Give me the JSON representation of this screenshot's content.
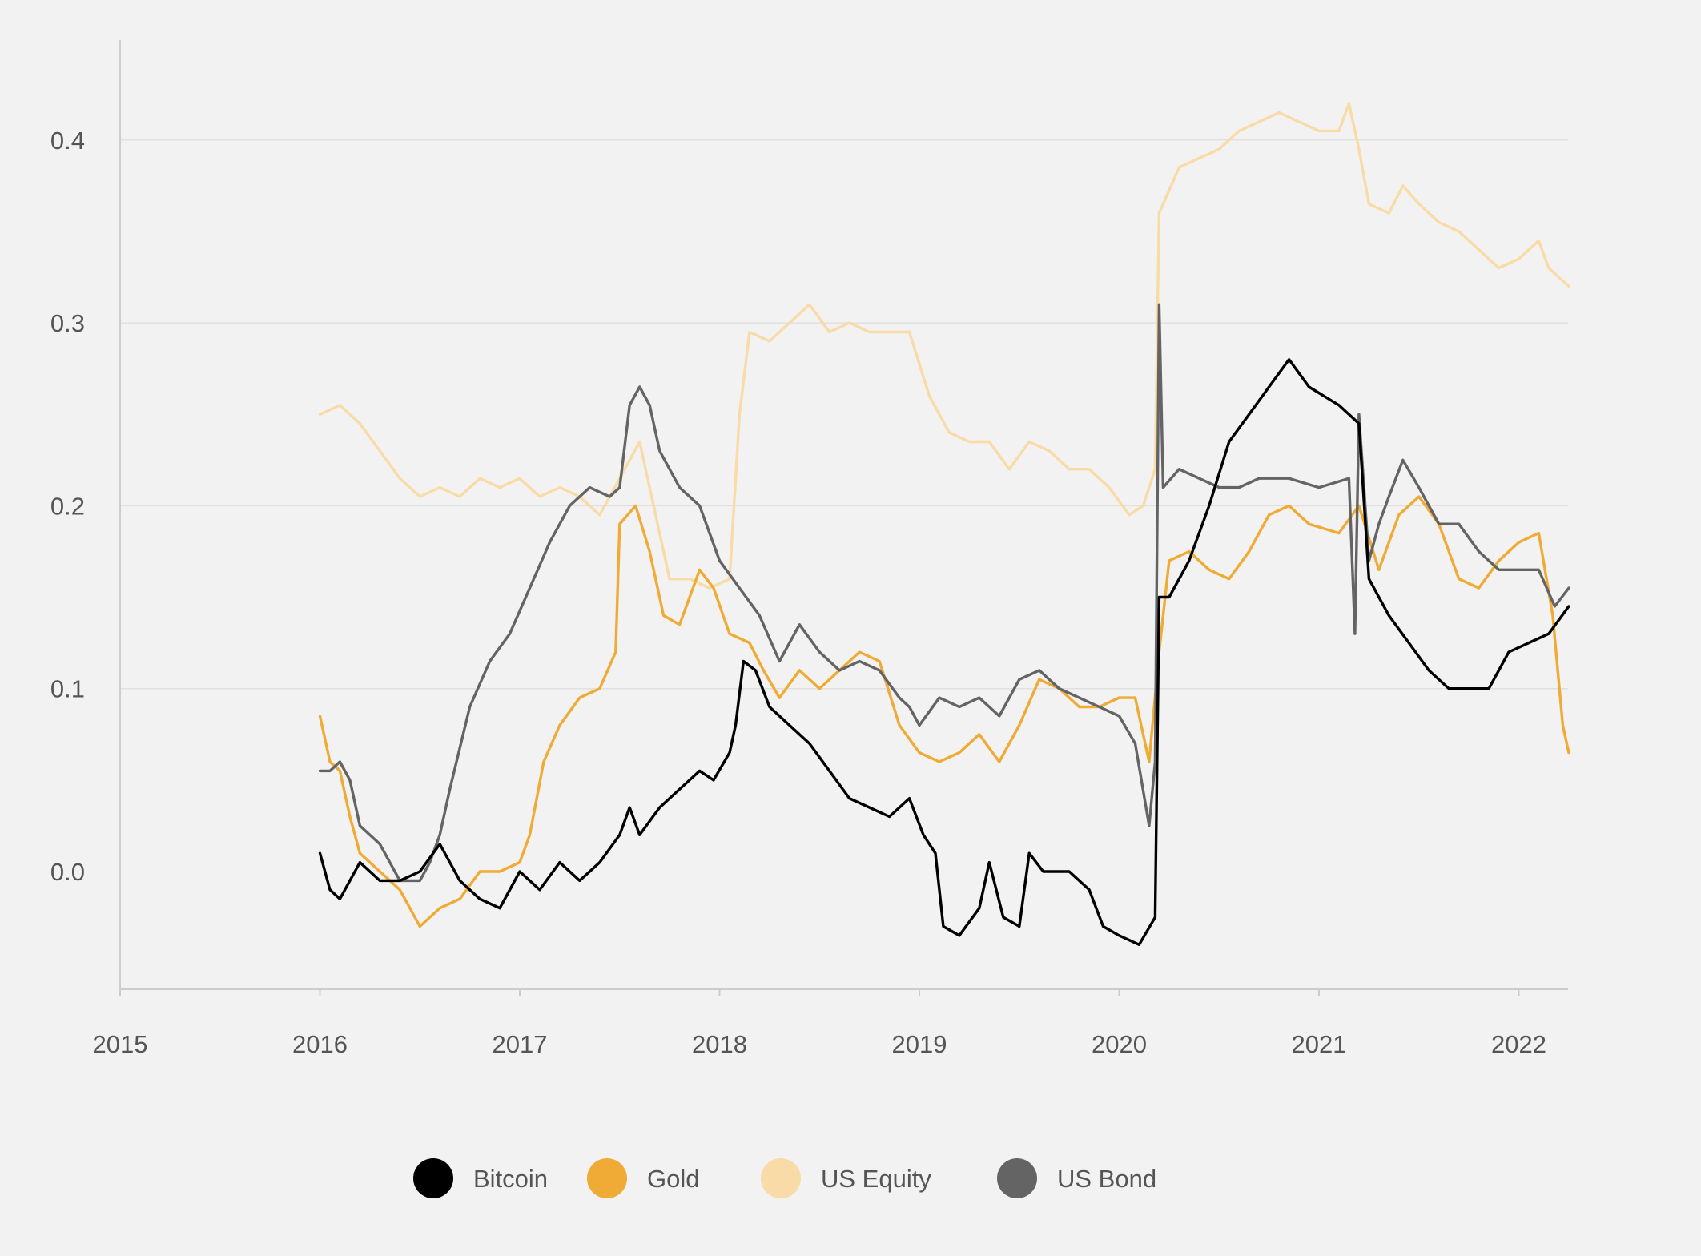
{
  "chart_data": {
    "type": "line",
    "title": "",
    "xlabel": "",
    "ylabel": "",
    "x_ticks": [
      "2015",
      "2016",
      "2017",
      "2018",
      "2019",
      "2020",
      "2021",
      "2022"
    ],
    "y_ticks": [
      "0.0",
      "0.1",
      "0.2",
      "0.3",
      "0.4"
    ],
    "xlim": [
      2015.0,
      2022.25
    ],
    "ylim": [
      -0.065,
      0.46
    ],
    "grid": "horizontal",
    "legend_position": "bottom",
    "series": [
      {
        "name": "Bitcoin",
        "color": "#000000",
        "points": [
          [
            2016.0,
            0.01
          ],
          [
            2016.05,
            -0.01
          ],
          [
            2016.1,
            -0.015
          ],
          [
            2016.2,
            0.005
          ],
          [
            2016.3,
            -0.005
          ],
          [
            2016.4,
            -0.005
          ],
          [
            2016.5,
            0.0
          ],
          [
            2016.6,
            0.015
          ],
          [
            2016.7,
            -0.005
          ],
          [
            2016.8,
            -0.015
          ],
          [
            2016.9,
            -0.02
          ],
          [
            2017.0,
            0.0
          ],
          [
            2017.1,
            -0.01
          ],
          [
            2017.2,
            0.005
          ],
          [
            2017.3,
            -0.005
          ],
          [
            2017.4,
            0.005
          ],
          [
            2017.5,
            0.02
          ],
          [
            2017.55,
            0.035
          ],
          [
            2017.6,
            0.02
          ],
          [
            2017.7,
            0.035
          ],
          [
            2017.8,
            0.045
          ],
          [
            2017.9,
            0.055
          ],
          [
            2017.97,
            0.05
          ],
          [
            2018.05,
            0.065
          ],
          [
            2018.08,
            0.08
          ],
          [
            2018.12,
            0.115
          ],
          [
            2018.18,
            0.11
          ],
          [
            2018.25,
            0.09
          ],
          [
            2018.35,
            0.08
          ],
          [
            2018.45,
            0.07
          ],
          [
            2018.55,
            0.055
          ],
          [
            2018.65,
            0.04
          ],
          [
            2018.75,
            0.035
          ],
          [
            2018.85,
            0.03
          ],
          [
            2018.95,
            0.04
          ],
          [
            2019.02,
            0.02
          ],
          [
            2019.08,
            0.01
          ],
          [
            2019.12,
            -0.03
          ],
          [
            2019.2,
            -0.035
          ],
          [
            2019.3,
            -0.02
          ],
          [
            2019.35,
            0.005
          ],
          [
            2019.42,
            -0.025
          ],
          [
            2019.5,
            -0.03
          ],
          [
            2019.55,
            0.01
          ],
          [
            2019.62,
            0.0
          ],
          [
            2019.75,
            0.0
          ],
          [
            2019.85,
            -0.01
          ],
          [
            2019.92,
            -0.03
          ],
          [
            2020.0,
            -0.035
          ],
          [
            2020.1,
            -0.04
          ],
          [
            2020.18,
            -0.025
          ],
          [
            2020.2,
            0.15
          ],
          [
            2020.25,
            0.15
          ],
          [
            2020.35,
            0.17
          ],
          [
            2020.45,
            0.2
          ],
          [
            2020.55,
            0.235
          ],
          [
            2020.65,
            0.25
          ],
          [
            2020.75,
            0.265
          ],
          [
            2020.85,
            0.28
          ],
          [
            2020.95,
            0.265
          ],
          [
            2021.1,
            0.255
          ],
          [
            2021.2,
            0.245
          ],
          [
            2021.25,
            0.16
          ],
          [
            2021.35,
            0.14
          ],
          [
            2021.45,
            0.125
          ],
          [
            2021.55,
            0.11
          ],
          [
            2021.65,
            0.1
          ],
          [
            2021.75,
            0.1
          ],
          [
            2021.85,
            0.1
          ],
          [
            2021.95,
            0.12
          ],
          [
            2022.05,
            0.125
          ],
          [
            2022.15,
            0.13
          ],
          [
            2022.25,
            0.145
          ]
        ]
      },
      {
        "name": "Gold",
        "color": "#efab35",
        "points": [
          [
            2016.0,
            0.085
          ],
          [
            2016.05,
            0.06
          ],
          [
            2016.1,
            0.055
          ],
          [
            2016.15,
            0.03
          ],
          [
            2016.2,
            0.01
          ],
          [
            2016.3,
            0.0
          ],
          [
            2016.4,
            -0.01
          ],
          [
            2016.5,
            -0.03
          ],
          [
            2016.6,
            -0.02
          ],
          [
            2016.7,
            -0.015
          ],
          [
            2016.8,
            0.0
          ],
          [
            2016.9,
            0.0
          ],
          [
            2017.0,
            0.005
          ],
          [
            2017.05,
            0.02
          ],
          [
            2017.12,
            0.06
          ],
          [
            2017.2,
            0.08
          ],
          [
            2017.3,
            0.095
          ],
          [
            2017.4,
            0.1
          ],
          [
            2017.48,
            0.12
          ],
          [
            2017.5,
            0.19
          ],
          [
            2017.58,
            0.2
          ],
          [
            2017.65,
            0.175
          ],
          [
            2017.72,
            0.14
          ],
          [
            2017.8,
            0.135
          ],
          [
            2017.9,
            0.165
          ],
          [
            2017.97,
            0.155
          ],
          [
            2018.05,
            0.13
          ],
          [
            2018.15,
            0.125
          ],
          [
            2018.22,
            0.11
          ],
          [
            2018.3,
            0.095
          ],
          [
            2018.4,
            0.11
          ],
          [
            2018.5,
            0.1
          ],
          [
            2018.6,
            0.11
          ],
          [
            2018.7,
            0.12
          ],
          [
            2018.8,
            0.115
          ],
          [
            2018.9,
            0.08
          ],
          [
            2019.0,
            0.065
          ],
          [
            2019.1,
            0.06
          ],
          [
            2019.2,
            0.065
          ],
          [
            2019.3,
            0.075
          ],
          [
            2019.4,
            0.06
          ],
          [
            2019.5,
            0.08
          ],
          [
            2019.6,
            0.105
          ],
          [
            2019.7,
            0.1
          ],
          [
            2019.8,
            0.09
          ],
          [
            2019.9,
            0.09
          ],
          [
            2020.0,
            0.095
          ],
          [
            2020.08,
            0.095
          ],
          [
            2020.15,
            0.06
          ],
          [
            2020.2,
            0.12
          ],
          [
            2020.25,
            0.17
          ],
          [
            2020.35,
            0.175
          ],
          [
            2020.45,
            0.165
          ],
          [
            2020.55,
            0.16
          ],
          [
            2020.65,
            0.175
          ],
          [
            2020.75,
            0.195
          ],
          [
            2020.85,
            0.2
          ],
          [
            2020.95,
            0.19
          ],
          [
            2021.1,
            0.185
          ],
          [
            2021.2,
            0.2
          ],
          [
            2021.3,
            0.165
          ],
          [
            2021.4,
            0.195
          ],
          [
            2021.5,
            0.205
          ],
          [
            2021.6,
            0.19
          ],
          [
            2021.7,
            0.16
          ],
          [
            2021.8,
            0.155
          ],
          [
            2021.9,
            0.17
          ],
          [
            2022.0,
            0.18
          ],
          [
            2022.1,
            0.185
          ],
          [
            2022.17,
            0.14
          ],
          [
            2022.22,
            0.08
          ],
          [
            2022.25,
            0.065
          ]
        ]
      },
      {
        "name": "US Equity",
        "color": "#f8dba6",
        "points": [
          [
            2016.0,
            0.25
          ],
          [
            2016.1,
            0.255
          ],
          [
            2016.2,
            0.245
          ],
          [
            2016.3,
            0.23
          ],
          [
            2016.4,
            0.215
          ],
          [
            2016.5,
            0.205
          ],
          [
            2016.6,
            0.21
          ],
          [
            2016.7,
            0.205
          ],
          [
            2016.8,
            0.215
          ],
          [
            2016.9,
            0.21
          ],
          [
            2017.0,
            0.215
          ],
          [
            2017.1,
            0.205
          ],
          [
            2017.2,
            0.21
          ],
          [
            2017.3,
            0.205
          ],
          [
            2017.4,
            0.195
          ],
          [
            2017.5,
            0.215
          ],
          [
            2017.6,
            0.235
          ],
          [
            2017.65,
            0.21
          ],
          [
            2017.75,
            0.16
          ],
          [
            2017.85,
            0.16
          ],
          [
            2017.95,
            0.155
          ],
          [
            2018.05,
            0.16
          ],
          [
            2018.1,
            0.25
          ],
          [
            2018.15,
            0.295
          ],
          [
            2018.25,
            0.29
          ],
          [
            2018.35,
            0.3
          ],
          [
            2018.45,
            0.31
          ],
          [
            2018.55,
            0.295
          ],
          [
            2018.65,
            0.3
          ],
          [
            2018.75,
            0.295
          ],
          [
            2018.85,
            0.295
          ],
          [
            2018.95,
            0.295
          ],
          [
            2019.05,
            0.26
          ],
          [
            2019.15,
            0.24
          ],
          [
            2019.25,
            0.235
          ],
          [
            2019.35,
            0.235
          ],
          [
            2019.45,
            0.22
          ],
          [
            2019.55,
            0.235
          ],
          [
            2019.65,
            0.23
          ],
          [
            2019.75,
            0.22
          ],
          [
            2019.85,
            0.22
          ],
          [
            2019.95,
            0.21
          ],
          [
            2020.05,
            0.195
          ],
          [
            2020.12,
            0.2
          ],
          [
            2020.18,
            0.22
          ],
          [
            2020.2,
            0.36
          ],
          [
            2020.3,
            0.385
          ],
          [
            2020.4,
            0.39
          ],
          [
            2020.5,
            0.395
          ],
          [
            2020.6,
            0.405
          ],
          [
            2020.7,
            0.41
          ],
          [
            2020.8,
            0.415
          ],
          [
            2020.9,
            0.41
          ],
          [
            2021.0,
            0.405
          ],
          [
            2021.1,
            0.405
          ],
          [
            2021.15,
            0.42
          ],
          [
            2021.2,
            0.395
          ],
          [
            2021.25,
            0.365
          ],
          [
            2021.35,
            0.36
          ],
          [
            2021.42,
            0.375
          ],
          [
            2021.5,
            0.365
          ],
          [
            2021.6,
            0.355
          ],
          [
            2021.7,
            0.35
          ],
          [
            2021.8,
            0.34
          ],
          [
            2021.9,
            0.33
          ],
          [
            2022.0,
            0.335
          ],
          [
            2022.1,
            0.345
          ],
          [
            2022.15,
            0.33
          ],
          [
            2022.2,
            0.325
          ],
          [
            2022.25,
            0.32
          ]
        ]
      },
      {
        "name": "US Bond",
        "color": "#646464",
        "points": [
          [
            2016.0,
            0.055
          ],
          [
            2016.05,
            0.055
          ],
          [
            2016.1,
            0.06
          ],
          [
            2016.15,
            0.05
          ],
          [
            2016.2,
            0.025
          ],
          [
            2016.3,
            0.015
          ],
          [
            2016.4,
            -0.005
          ],
          [
            2016.5,
            -0.005
          ],
          [
            2016.55,
            0.005
          ],
          [
            2016.6,
            0.02
          ],
          [
            2016.65,
            0.045
          ],
          [
            2016.75,
            0.09
          ],
          [
            2016.85,
            0.115
          ],
          [
            2016.95,
            0.13
          ],
          [
            2017.05,
            0.155
          ],
          [
            2017.15,
            0.18
          ],
          [
            2017.25,
            0.2
          ],
          [
            2017.35,
            0.21
          ],
          [
            2017.45,
            0.205
          ],
          [
            2017.5,
            0.21
          ],
          [
            2017.55,
            0.255
          ],
          [
            2017.6,
            0.265
          ],
          [
            2017.65,
            0.255
          ],
          [
            2017.7,
            0.23
          ],
          [
            2017.8,
            0.21
          ],
          [
            2017.9,
            0.2
          ],
          [
            2018.0,
            0.17
          ],
          [
            2018.1,
            0.155
          ],
          [
            2018.2,
            0.14
          ],
          [
            2018.3,
            0.115
          ],
          [
            2018.4,
            0.135
          ],
          [
            2018.5,
            0.12
          ],
          [
            2018.6,
            0.11
          ],
          [
            2018.7,
            0.115
          ],
          [
            2018.8,
            0.11
          ],
          [
            2018.9,
            0.095
          ],
          [
            2018.95,
            0.09
          ],
          [
            2019.0,
            0.08
          ],
          [
            2019.1,
            0.095
          ],
          [
            2019.2,
            0.09
          ],
          [
            2019.3,
            0.095
          ],
          [
            2019.4,
            0.085
          ],
          [
            2019.5,
            0.105
          ],
          [
            2019.6,
            0.11
          ],
          [
            2019.7,
            0.1
          ],
          [
            2019.8,
            0.095
          ],
          [
            2019.9,
            0.09
          ],
          [
            2020.0,
            0.085
          ],
          [
            2020.08,
            0.07
          ],
          [
            2020.15,
            0.025
          ],
          [
            2020.18,
            0.06
          ],
          [
            2020.2,
            0.31
          ],
          [
            2020.22,
            0.21
          ],
          [
            2020.3,
            0.22
          ],
          [
            2020.4,
            0.215
          ],
          [
            2020.5,
            0.21
          ],
          [
            2020.6,
            0.21
          ],
          [
            2020.7,
            0.215
          ],
          [
            2020.85,
            0.215
          ],
          [
            2021.0,
            0.21
          ],
          [
            2021.15,
            0.215
          ],
          [
            2021.18,
            0.13
          ],
          [
            2021.2,
            0.25
          ],
          [
            2021.25,
            0.17
          ],
          [
            2021.3,
            0.19
          ],
          [
            2021.35,
            0.205
          ],
          [
            2021.42,
            0.225
          ],
          [
            2021.5,
            0.21
          ],
          [
            2021.6,
            0.19
          ],
          [
            2021.7,
            0.19
          ],
          [
            2021.8,
            0.175
          ],
          [
            2021.9,
            0.165
          ],
          [
            2022.0,
            0.165
          ],
          [
            2022.1,
            0.165
          ],
          [
            2022.18,
            0.145
          ],
          [
            2022.25,
            0.155
          ]
        ]
      }
    ]
  }
}
